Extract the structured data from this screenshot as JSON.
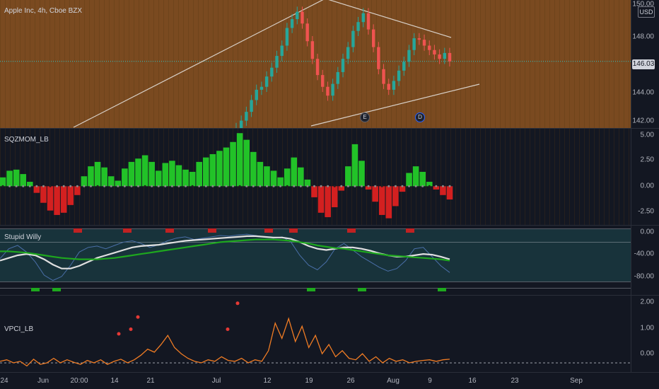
{
  "symbol": {
    "title": "Apple Inc, 4h, Cboe BZX",
    "currency": "USD",
    "last_price": "146.03"
  },
  "colors": {
    "background": "#131722",
    "price_pane_bg": "#7a4a20",
    "indicator_band": "#5a3a1a",
    "candle_up": "#26a69a",
    "candle_down": "#ef5350",
    "mom_pos": "#22c228",
    "mom_neg": "#d32020",
    "willy_white": "#e0e0e0",
    "willy_green": "#1ea81e",
    "willy_red": "#d32020",
    "vpci": "#f07c24"
  },
  "panes": {
    "price": {
      "axis_ticks": [
        "150.00",
        "148.00",
        "146.03",
        "144.00",
        "142.00"
      ],
      "events": [
        "E",
        "D"
      ],
      "chart_data": {
        "type": "candlestick",
        "title": "Apple Inc, 4h, Cboe BZX",
        "ylim": [
          141.5,
          150.2
        ],
        "x": [
          "Jun",
          "20:00",
          "14",
          "21",
          "Jul",
          "12",
          "19",
          "26",
          "Aug",
          "9",
          "16",
          "23",
          "Sep"
        ],
        "closes": [
          141.5,
          142.0,
          142.6,
          143.4,
          144.1,
          144.3,
          145.0,
          145.6,
          146.4,
          147.1,
          148.3,
          148.9,
          149.4,
          148.6,
          147.4,
          146.2,
          145.1,
          144.3,
          143.7,
          144.5,
          145.3,
          146.2,
          147.0,
          148.1,
          148.7,
          149.3,
          148.2,
          147.0,
          145.5,
          144.5,
          144.1,
          144.7,
          145.4,
          146.0,
          146.8,
          147.6,
          147.5,
          147.1,
          146.8,
          146.5,
          146.2,
          146.6,
          146.03
        ]
      }
    },
    "sqzmom": {
      "title": "SQZMOM_LB",
      "axis_ticks": [
        "5.00",
        "2.50",
        "0.00",
        "-2.50"
      ],
      "chart_data": {
        "type": "bar",
        "ylim": [
          -3.5,
          5.2
        ],
        "values": [
          0.8,
          1.4,
          1.5,
          1.1,
          0.4,
          -0.6,
          -1.5,
          -2.2,
          -2.6,
          -2.4,
          -1.7,
          -0.8,
          0.9,
          1.8,
          2.2,
          1.7,
          0.9,
          0.5,
          1.6,
          2.2,
          2.5,
          2.8,
          2.2,
          1.4,
          2.1,
          2.3,
          1.9,
          1.5,
          1.3,
          2.2,
          2.6,
          2.9,
          3.2,
          3.5,
          4.0,
          4.8,
          4.2,
          3.1,
          2.2,
          1.8,
          1.4,
          0.8,
          1.6,
          2.6,
          1.7,
          0.6,
          -1.0,
          -2.4,
          -2.8,
          -1.9,
          -0.4,
          1.8,
          3.8,
          2.3,
          -0.3,
          -1.4,
          -2.6,
          -2.9,
          -1.8,
          -0.5,
          1.2,
          1.8,
          1.3,
          0.4,
          -0.3,
          -0.8,
          -1.2
        ]
      }
    },
    "willy": {
      "title": "Stupid Willy",
      "axis_ticks": [
        "0.00",
        "-40.00",
        "-80.00"
      ],
      "chart_data": {
        "type": "line",
        "ylim": [
          -100,
          5
        ],
        "series": [
          {
            "values": [
              -45,
              -30,
              -25,
              -35,
              -50,
              -70,
              -78,
              -72,
              -55,
              -35,
              -28,
              -26,
              -30,
              -25,
              -20,
              -18,
              -22,
              -28,
              -24,
              -18,
              -14,
              -12,
              -16,
              -14,
              -12,
              -10,
              -11,
              -9,
              -8,
              -10,
              -12,
              -14,
              -12,
              -20,
              -40,
              -55,
              -62,
              -50,
              -30,
              -22,
              -32,
              -42,
              -50,
              -58,
              -64,
              -60,
              -48,
              -30,
              -28,
              -42,
              -56,
              -66
            ]
          },
          {
            "values": [
              -48,
              -44,
              -40,
              -38,
              -40,
              -46,
              -54,
              -60,
              -60,
              -56,
              -50,
              -44,
              -40,
              -36,
              -32,
              -28,
              -26,
              -25,
              -24,
              -22,
              -20,
              -18,
              -17,
              -16,
              -15,
              -14,
              -13,
              -12,
              -11,
              -11,
              -12,
              -13,
              -13,
              -15,
              -20,
              -26,
              -30,
              -32,
              -30,
              -28,
              -28,
              -30,
              -33,
              -37,
              -40,
              -42,
              -42,
              -40,
              -38,
              -39,
              -42,
              -46
            ]
          },
          {
            "values": [
              -34,
              -34,
              -35,
              -36,
              -38,
              -40,
              -42,
              -44,
              -45,
              -46,
              -46,
              -46,
              -45,
              -44,
              -42,
              -40,
              -38,
              -36,
              -34,
              -32,
              -30,
              -28,
              -26,
              -24,
              -22,
              -20,
              -19,
              -18,
              -17,
              -16,
              -16,
              -16,
              -17,
              -18,
              -20,
              -22,
              -25,
              -27,
              -29,
              -30,
              -32,
              -34,
              -36,
              -38,
              -40,
              -41,
              -42,
              -43,
              -44,
              -45,
              -46,
              -48
            ]
          }
        ]
      }
    },
    "vpci": {
      "title": "VPCI_LB",
      "axis_ticks": [
        "2.00",
        "1.00",
        "0.00"
      ],
      "chart_data": {
        "type": "line",
        "ylim": [
          -0.3,
          2.2
        ],
        "values": [
          0.05,
          0.1,
          0.0,
          0.05,
          -0.1,
          0.12,
          -0.05,
          0.0,
          0.15,
          0.0,
          0.1,
          0.02,
          -0.05,
          0.08,
          0.0,
          0.1,
          -0.05,
          0.05,
          0.12,
          0.0,
          0.1,
          0.25,
          0.45,
          0.35,
          0.6,
          0.9,
          0.5,
          0.3,
          0.15,
          0.05,
          0.0,
          0.1,
          0.05,
          0.2,
          0.08,
          0.05,
          0.15,
          0.0,
          0.1,
          0.05,
          0.4,
          1.3,
          0.8,
          1.45,
          0.7,
          1.2,
          0.5,
          0.9,
          0.3,
          0.6,
          0.2,
          0.4,
          0.15,
          0.1,
          0.3,
          0.05,
          0.2,
          0.0,
          0.15,
          0.05,
          0.1,
          0.0,
          0.05,
          0.08,
          0.1,
          0.05,
          0.1,
          0.12
        ]
      }
    }
  },
  "x_axis": [
    "24",
    "Jun",
    "20:00",
    "14",
    "21",
    "Jul",
    "12",
    "19",
    "26",
    "Aug",
    "9",
    "16",
    "23",
    "Sep"
  ]
}
